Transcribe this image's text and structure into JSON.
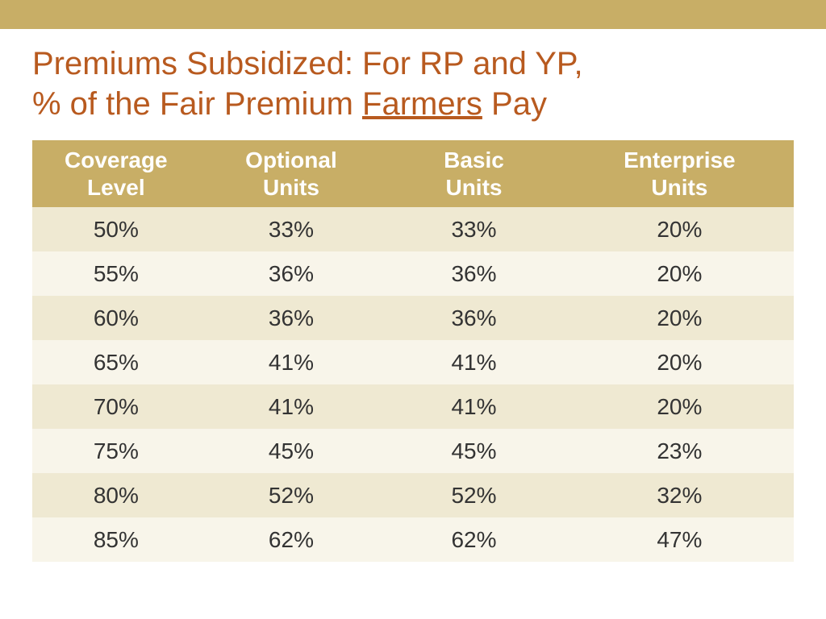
{
  "colors": {
    "accent_bar": "#c8ae66",
    "title": "#b85a1f",
    "header_bg": "#c8ae66",
    "header_text": "#ffffff",
    "row_even_bg": "#efe9d2",
    "row_odd_bg": "#f8f5ea",
    "body_text": "#333333",
    "page_bg": "#ffffff"
  },
  "title": {
    "line1": "Premiums Subsidized: For RP and YP,",
    "line2_pre": "% of the Fair Premium ",
    "line2_underlined": "Farmers",
    "line2_post": " Pay"
  },
  "table": {
    "columns": [
      "Coverage Level",
      "Optional Units",
      "Basic Units",
      "Enterprise Units"
    ],
    "rows": [
      [
        "50%",
        "33%",
        "33%",
        "20%"
      ],
      [
        "55%",
        "36%",
        "36%",
        "20%"
      ],
      [
        "60%",
        "36%",
        "36%",
        "20%"
      ],
      [
        "65%",
        "41%",
        "41%",
        "20%"
      ],
      [
        "70%",
        "41%",
        "41%",
        "20%"
      ],
      [
        "75%",
        "45%",
        "45%",
        "23%"
      ],
      [
        "80%",
        "52%",
        "52%",
        "32%"
      ],
      [
        "85%",
        "62%",
        "62%",
        "47%"
      ]
    ],
    "header_fontsize": 28,
    "cell_fontsize": 28,
    "col_widths_pct": [
      22,
      24,
      24,
      30
    ]
  }
}
